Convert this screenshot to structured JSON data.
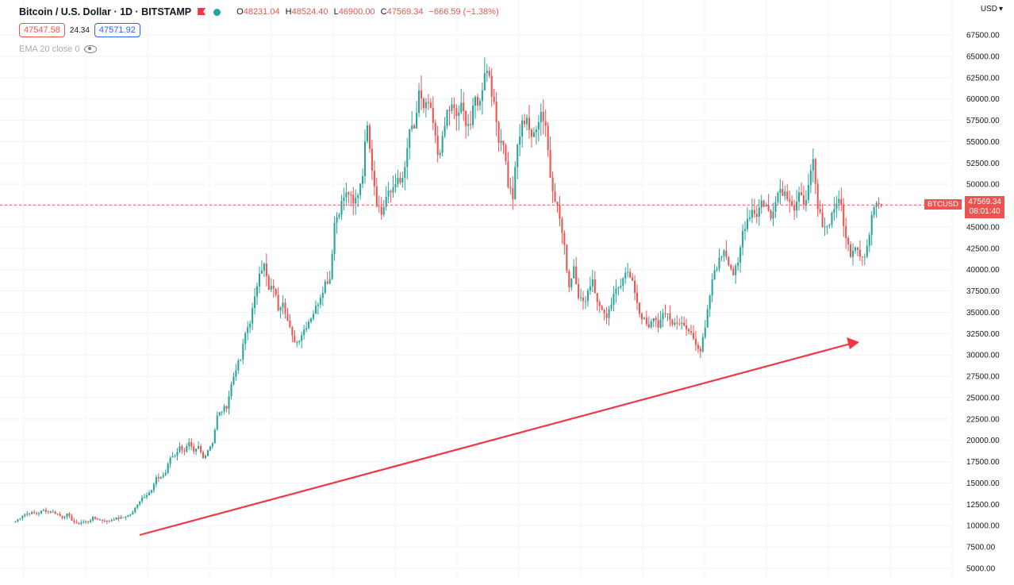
{
  "header": {
    "title": "Bitcoin / U.S. Dollar · 1D · BITSTAMP",
    "ohlc": [
      {
        "label": "O",
        "value": "48231.04"
      },
      {
        "label": "H",
        "value": "48524.40"
      },
      {
        "label": "L",
        "value": "46900.00"
      },
      {
        "label": "C",
        "value": "47569.34"
      },
      {
        "label": "",
        "value": "−666.59 (−1.38%)"
      }
    ],
    "sell_price": "47547.58",
    "spread": "24.34",
    "buy_price": "47571.92",
    "indicator": "EMA 20 close 0",
    "currency": "USD",
    "market_dot_color": "#26a69a"
  },
  "price_tag": {
    "ticker": "BTCUSD",
    "price": "47569.34",
    "countdown": "08:01:40"
  },
  "colors": {
    "up": "#26a69a",
    "down": "#ef5350",
    "trend_arrow": "#f23645",
    "price_line": "#ef5350"
  },
  "chart_data": {
    "type": "candlestick",
    "yaxis": {
      "ticks": [
        "5000.00",
        "7500.00",
        "10000.00",
        "12500.00",
        "15000.00",
        "17500.00",
        "20000.00",
        "22500.00",
        "25000.00",
        "27500.00",
        "30000.00",
        "32500.00",
        "35000.00",
        "37500.00",
        "40000.00",
        "42500.00",
        "45000.00",
        "47500.00",
        "50000.00",
        "52500.00",
        "55000.00",
        "57500.00",
        "60000.00",
        "62500.00",
        "65000.00",
        "67500.00"
      ],
      "ylim": [
        4000,
        70000
      ]
    },
    "last_price": 47569.34,
    "price_path": [
      [
        0,
        10500
      ],
      [
        3,
        11200
      ],
      [
        6,
        11500
      ],
      [
        9,
        11400
      ],
      [
        12,
        11800
      ],
      [
        14,
        11700
      ],
      [
        17,
        11500
      ],
      [
        20,
        11000
      ],
      [
        22,
        11300
      ],
      [
        24,
        10700
      ],
      [
        26,
        10200
      ],
      [
        28,
        10400
      ],
      [
        31,
        10500
      ],
      [
        33,
        10900
      ],
      [
        36,
        10700
      ],
      [
        39,
        10500
      ],
      [
        42,
        10800
      ],
      [
        45,
        10900
      ],
      [
        48,
        11200
      ],
      [
        50,
        11500
      ],
      [
        52,
        12600
      ],
      [
        54,
        13300
      ],
      [
        56,
        13700
      ],
      [
        58,
        14100
      ],
      [
        60,
        15500
      ],
      [
        62,
        15700
      ],
      [
        64,
        16200
      ],
      [
        66,
        18000
      ],
      [
        68,
        18300
      ],
      [
        70,
        19200
      ],
      [
        72,
        18800
      ],
      [
        74,
        19600
      ],
      [
        76,
        18500
      ],
      [
        78,
        19200
      ],
      [
        80,
        17900
      ],
      [
        82,
        18900
      ],
      [
        84,
        19800
      ],
      [
        86,
        22800
      ],
      [
        88,
        23500
      ],
      [
        90,
        24000
      ],
      [
        92,
        26500
      ],
      [
        94,
        28500
      ],
      [
        96,
        29500
      ],
      [
        98,
        32500
      ],
      [
        100,
        34000
      ],
      [
        102,
        36500
      ],
      [
        104,
        40000
      ],
      [
        106,
        40500
      ],
      [
        108,
        37500
      ],
      [
        110,
        38000
      ],
      [
        112,
        35500
      ],
      [
        114,
        36500
      ],
      [
        116,
        34000
      ],
      [
        118,
        32000
      ],
      [
        120,
        31500
      ],
      [
        122,
        32500
      ],
      [
        124,
        33500
      ],
      [
        126,
        34500
      ],
      [
        128,
        35500
      ],
      [
        130,
        37000
      ],
      [
        132,
        38500
      ],
      [
        134,
        39000
      ],
      [
        136,
        45500
      ],
      [
        138,
        47000
      ],
      [
        140,
        48500
      ],
      [
        142,
        49000
      ],
      [
        144,
        47500
      ],
      [
        146,
        49000
      ],
      [
        148,
        51500
      ],
      [
        150,
        57500
      ],
      [
        152,
        52000
      ],
      [
        154,
        48000
      ],
      [
        156,
        46500
      ],
      [
        158,
        48500
      ],
      [
        160,
        49000
      ],
      [
        162,
        50500
      ],
      [
        164,
        50000
      ],
      [
        166,
        51500
      ],
      [
        168,
        56500
      ],
      [
        170,
        56000
      ],
      [
        172,
        61000
      ],
      [
        174,
        58500
      ],
      [
        176,
        59500
      ],
      [
        178,
        57000
      ],
      [
        180,
        53500
      ],
      [
        182,
        55000
      ],
      [
        184,
        58500
      ],
      [
        186,
        59000
      ],
      [
        188,
        58000
      ],
      [
        190,
        59000
      ],
      [
        192,
        57500
      ],
      [
        194,
        57000
      ],
      [
        196,
        60000
      ],
      [
        198,
        59500
      ],
      [
        200,
        63500
      ],
      [
        202,
        63000
      ],
      [
        204,
        59000
      ],
      [
        206,
        55500
      ],
      [
        208,
        55000
      ],
      [
        210,
        50000
      ],
      [
        212,
        48500
      ],
      [
        214,
        54500
      ],
      [
        216,
        57000
      ],
      [
        218,
        58000
      ],
      [
        220,
        55000
      ],
      [
        222,
        57000
      ],
      [
        224,
        58500
      ],
      [
        226,
        57000
      ],
      [
        228,
        51000
      ],
      [
        230,
        48500
      ],
      [
        232,
        46000
      ],
      [
        234,
        42500
      ],
      [
        236,
        38000
      ],
      [
        238,
        40500
      ],
      [
        240,
        37000
      ],
      [
        242,
        36000
      ],
      [
        244,
        37500
      ],
      [
        246,
        39000
      ],
      [
        248,
        36000
      ],
      [
        250,
        35500
      ],
      [
        252,
        34000
      ],
      [
        254,
        36000
      ],
      [
        256,
        37500
      ],
      [
        258,
        38500
      ],
      [
        260,
        40000
      ],
      [
        262,
        39000
      ],
      [
        264,
        37500
      ],
      [
        266,
        35000
      ],
      [
        268,
        34000
      ],
      [
        270,
        33000
      ],
      [
        272,
        34500
      ],
      [
        274,
        33500
      ],
      [
        276,
        34500
      ],
      [
        278,
        35000
      ],
      [
        280,
        33500
      ],
      [
        282,
        34000
      ],
      [
        284,
        33500
      ],
      [
        286,
        33000
      ],
      [
        288,
        32500
      ],
      [
        290,
        31500
      ],
      [
        292,
        30500
      ],
      [
        294,
        33000
      ],
      [
        296,
        37000
      ],
      [
        298,
        40000
      ],
      [
        300,
        41000
      ],
      [
        302,
        42500
      ],
      [
        304,
        41000
      ],
      [
        306,
        39500
      ],
      [
        308,
        40500
      ],
      [
        310,
        44500
      ],
      [
        312,
        46000
      ],
      [
        314,
        47000
      ],
      [
        316,
        46500
      ],
      [
        318,
        48000
      ],
      [
        320,
        47500
      ],
      [
        322,
        46000
      ],
      [
        324,
        48500
      ],
      [
        326,
        49500
      ],
      [
        328,
        49000
      ],
      [
        330,
        48500
      ],
      [
        332,
        47000
      ],
      [
        334,
        48500
      ],
      [
        336,
        48000
      ],
      [
        338,
        49500
      ],
      [
        340,
        52500
      ],
      [
        342,
        47000
      ],
      [
        344,
        45500
      ],
      [
        346,
        45000
      ],
      [
        348,
        46500
      ],
      [
        350,
        48000
      ],
      [
        352,
        47500
      ],
      [
        354,
        43500
      ],
      [
        356,
        42000
      ],
      [
        358,
        43000
      ],
      [
        360,
        42000
      ],
      [
        362,
        41500
      ],
      [
        364,
        44000
      ],
      [
        366,
        47800
      ],
      [
        368,
        48200
      ],
      [
        369,
        47569.34
      ]
    ]
  }
}
